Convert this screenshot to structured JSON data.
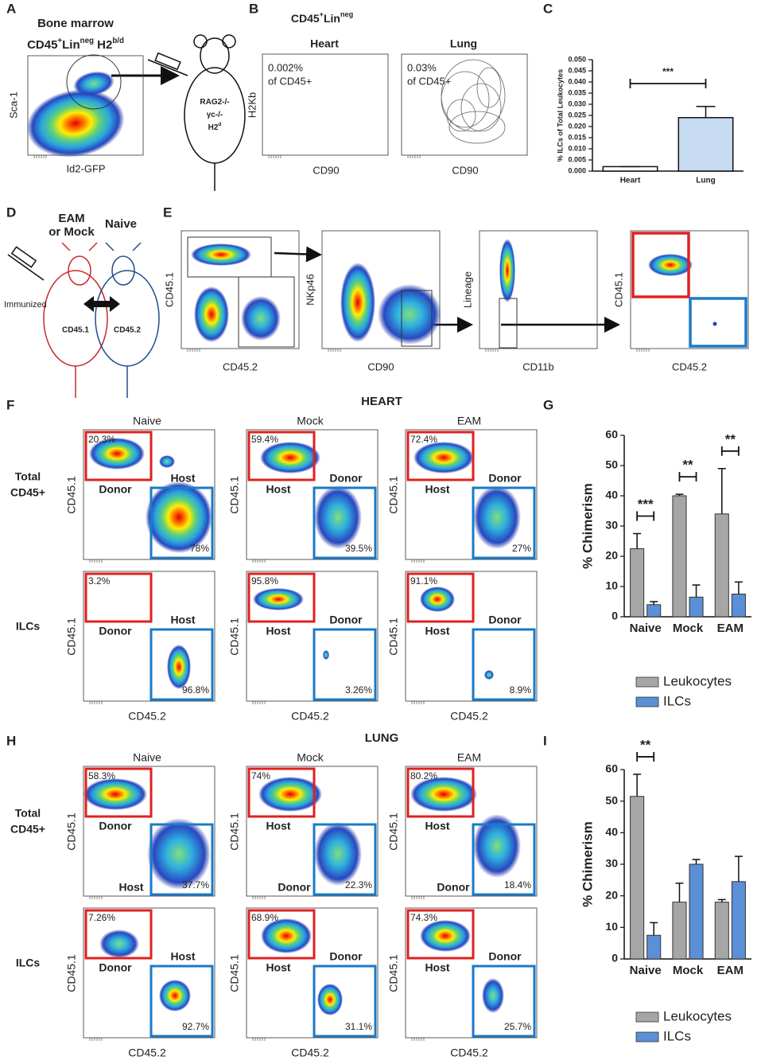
{
  "letters": [
    "A",
    "B",
    "C",
    "D",
    "E",
    "F",
    "G",
    "H",
    "I"
  ],
  "A": {
    "title": "Bone marrow",
    "gate_label": [
      {
        "text": "CD45"
      },
      {
        "text": "+",
        "sup": true
      },
      {
        "text": "Lin"
      },
      {
        "text": "neg",
        "sup": true
      },
      {
        "text": " H2"
      },
      {
        "text": "b/d",
        "sup": true
      }
    ],
    "y_label": "Sca-1",
    "x_label": "Id2-GFP",
    "mouse_label": [
      [
        {
          "text": "RAG2-/-"
        }
      ],
      [
        {
          "text": "γc-/-"
        }
      ],
      [
        {
          "text": "H2"
        },
        {
          "text": "d",
          "sup": true
        }
      ]
    ]
  },
  "B": {
    "title": [
      {
        "text": "CD45"
      },
      {
        "text": "+",
        "sup": true
      },
      {
        "text": "Lin"
      },
      {
        "text": "neg",
        "sup": true
      }
    ],
    "plots": [
      {
        "title": "Heart",
        "pct": "0.002%",
        "of": "of CD45+"
      },
      {
        "title": "Lung",
        "pct": "0.03%",
        "of": "of CD45+"
      }
    ],
    "y_label": "H2Kb",
    "x_label": "CD90"
  },
  "D": {
    "left_label": [
      "EAM",
      "or Mock"
    ],
    "right_label": "Naive",
    "left_note": "Immunized",
    "left_marker": "CD45.1",
    "right_marker": "CD45.2"
  },
  "E": {
    "plots": [
      {
        "y": "CD45.1",
        "x": "CD45.2"
      },
      {
        "y": "NKp46",
        "x": "CD90"
      },
      {
        "y": "Lineage",
        "x": "CD11b"
      },
      {
        "y": "CD45.1",
        "x": "CD45.2"
      }
    ]
  },
  "F": {
    "title": "HEART",
    "columns": [
      "Naive",
      "Mock",
      "EAM"
    ],
    "row_labels": [
      [
        "Total",
        "CD45+"
      ],
      [
        "ILCs"
      ]
    ],
    "y_label": "CD45.1",
    "x_label": "CD45.2",
    "rows": [
      [
        {
          "tl": "20.3%",
          "br": "78%",
          "tl_label": "Donor",
          "br_label": "Host"
        },
        {
          "tl": "59.4%",
          "br": "39.5%",
          "tl_label": "Host",
          "br_label": "Donor"
        },
        {
          "tl": "72.4%",
          "br": "27%",
          "tl_label": "Host",
          "br_label": "Donor"
        }
      ],
      [
        {
          "tl": "3.2%",
          "br": "96.8%",
          "tl_label": "Donor",
          "br_label": "Host"
        },
        {
          "tl": "95.8%",
          "br": "3.26%",
          "tl_label": "Host",
          "br_label": "Donor"
        },
        {
          "tl": "91.1%",
          "br": "8.9%",
          "tl_label": "Host",
          "br_label": "Donor"
        }
      ]
    ]
  },
  "H": {
    "title": "LUNG",
    "columns": [
      "Naive",
      "Mock",
      "EAM"
    ],
    "row_labels": [
      [
        "Total",
        "CD45+"
      ],
      [
        "ILCs"
      ]
    ],
    "y_label": "CD45.1",
    "x_label": "CD45.2",
    "rows": [
      [
        {
          "tl": "58.3%",
          "br": "37.7%",
          "tl_label": "Donor",
          "br_label": "Host"
        },
        {
          "tl": "74%",
          "br": "22.3%",
          "tl_label": "Host",
          "br_label": "Donor"
        },
        {
          "tl": "80.2%",
          "br": "18.4%",
          "tl_label": "Host",
          "br_label": "Donor"
        }
      ],
      [
        {
          "tl": "7.26%",
          "br": "92.7%",
          "tl_label": "Donor",
          "br_label": "Host"
        },
        {
          "tl": "68.9%",
          "br": "31.1%",
          "tl_label": "Host",
          "br_label": "Donor"
        },
        {
          "tl": "74.3%",
          "br": "25.7%",
          "tl_label": "Host",
          "br_label": "Donor"
        }
      ]
    ]
  },
  "chart_data": [
    {
      "type": "bar",
      "y_label": "% ILCs of Total Leukocytes",
      "categories": [
        "Heart",
        "Lung"
      ],
      "values": [
        0.002,
        0.024
      ],
      "error": [
        0,
        0.005
      ],
      "colors": [
        "#ffffff",
        "#c6daf1"
      ],
      "ylim": [
        0,
        0.05
      ],
      "yticks": [
        {
          "value": 0,
          "label": "0.000"
        },
        {
          "value": 0.005,
          "label": "0.005"
        },
        {
          "value": 0.01,
          "label": "0.010"
        },
        {
          "value": 0.015,
          "label": "0.015"
        },
        {
          "value": 0.02,
          "label": "0.020"
        },
        {
          "value": 0.025,
          "label": "0.025"
        },
        {
          "value": 0.03,
          "label": "0.030"
        },
        {
          "value": 0.035,
          "label": "0.035"
        },
        {
          "value": 0.04,
          "label": "0.040"
        },
        {
          "value": 0.045,
          "label": "0.045"
        },
        {
          "value": 0.05,
          "label": "0.050"
        }
      ],
      "annotations": [
        {
          "text": "***"
        }
      ]
    },
    {
      "type": "grouped_bar",
      "y_label": "% Chimerism",
      "categories": [
        "Naive",
        "Mock",
        "EAM"
      ],
      "series": [
        {
          "name": "Leukocytes",
          "color": "#a6a6a6",
          "values": [
            22.5,
            40,
            34
          ],
          "error": [
            5,
            0.5,
            15
          ]
        },
        {
          "name": "ILCs",
          "color": "#5b8fd6",
          "values": [
            4,
            6.5,
            7.5
          ],
          "error": [
            1,
            4,
            4
          ]
        }
      ],
      "ylim": [
        0,
        60
      ],
      "yticks": [
        0,
        10,
        20,
        30,
        40,
        50,
        60
      ],
      "annotations": [
        {
          "text": "***",
          "category": "Naive"
        },
        {
          "text": "**",
          "category": "Mock"
        },
        {
          "text": "**",
          "category": "EAM"
        }
      ]
    },
    {
      "type": "grouped_bar",
      "y_label": "% Chimerism",
      "categories": [
        "Naive",
        "Mock",
        "EAM"
      ],
      "series": [
        {
          "name": "Leukocytes",
          "color": "#a6a6a6",
          "values": [
            51.5,
            18,
            18
          ],
          "error": [
            7,
            6,
            0.8
          ]
        },
        {
          "name": "ILCs",
          "color": "#5b8fd6",
          "values": [
            7.5,
            30,
            24.5
          ],
          "error": [
            4,
            1.5,
            8
          ]
        }
      ],
      "ylim": [
        0,
        60
      ],
      "yticks": [
        0,
        10,
        20,
        30,
        40,
        50,
        60
      ],
      "annotations": [
        {
          "text": "**",
          "category": "Naive"
        }
      ]
    }
  ]
}
